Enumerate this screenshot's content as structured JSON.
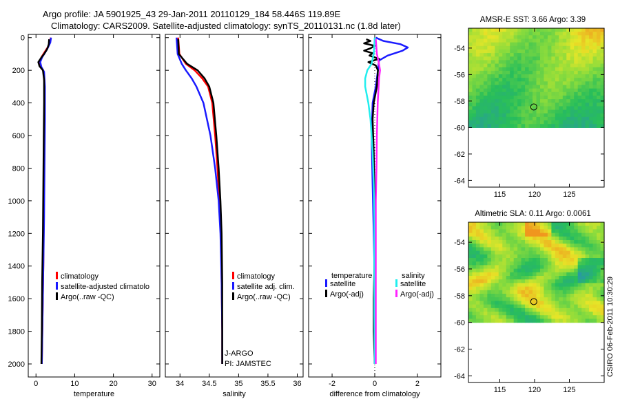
{
  "header": {
    "line1": "Argo profile: JA 5901925_43 29-Jan-2011 20110129_184 58.446S 119.89E",
    "line2": "Climatology: CARS2009. Satellite-adjusted climatology: synTS_20110131.nc (1.8d later)"
  },
  "stamp": "CSIRO 06-Feb-2011 10:30:29",
  "colors": {
    "red": "#ff0000",
    "blue": "#1a1aff",
    "black": "#000000",
    "cyan": "#22eeee",
    "magenta": "#ff22ff"
  },
  "chart_data": [
    {
      "type": "line",
      "name": "temperature-profile",
      "xlabel": "temperature",
      "ylabel": "",
      "xlim": [
        -2,
        32
      ],
      "ylim": [
        2080,
        -20
      ],
      "xticks": [
        0,
        10,
        20,
        30
      ],
      "yticks": [
        0,
        200,
        400,
        600,
        800,
        1000,
        1200,
        1400,
        1600,
        1800,
        2000
      ],
      "legend": [
        "climatology",
        "satellite-adjusted climatolo",
        "Argo(..raw -QC)"
      ],
      "legend_position": "lower-right",
      "series": [
        {
          "name": "climatology",
          "color": "red",
          "points": [
            [
              3.8,
              0
            ],
            [
              3.6,
              30
            ],
            [
              3.0,
              60
            ],
            [
              2.2,
              90
            ],
            [
              1.4,
              120
            ],
            [
              1.0,
              150
            ],
            [
              1.3,
              180
            ],
            [
              2.0,
              210
            ],
            [
              2.2,
              300
            ],
            [
              2.2,
              500
            ],
            [
              2.1,
              800
            ],
            [
              2.0,
              1100
            ],
            [
              1.9,
              1400
            ],
            [
              1.7,
              1700
            ],
            [
              1.5,
              2000
            ]
          ]
        },
        {
          "name": "satellite-adjusted climatology",
          "color": "blue",
          "points": [
            [
              3.9,
              0
            ],
            [
              3.7,
              30
            ],
            [
              3.1,
              60
            ],
            [
              2.4,
              90
            ],
            [
              1.6,
              120
            ],
            [
              1.1,
              150
            ],
            [
              1.4,
              180
            ],
            [
              2.1,
              210
            ],
            [
              2.3,
              300
            ],
            [
              2.3,
              500
            ],
            [
              2.2,
              800
            ],
            [
              2.1,
              1100
            ],
            [
              1.9,
              1400
            ],
            [
              1.7,
              1700
            ],
            [
              1.5,
              2000
            ]
          ]
        },
        {
          "name": "Argo(..raw -QC)",
          "color": "black",
          "points": [
            [
              3.4,
              10
            ],
            [
              3.3,
              40
            ],
            [
              2.9,
              70
            ],
            [
              2.1,
              100
            ],
            [
              1.3,
              125
            ],
            [
              0.6,
              150
            ],
            [
              0.9,
              175
            ],
            [
              1.8,
              200
            ],
            [
              2.1,
              260
            ],
            [
              2.1,
              400
            ],
            [
              2.0,
              600
            ],
            [
              1.9,
              900
            ],
            [
              1.8,
              1200
            ],
            [
              1.6,
              1500
            ],
            [
              1.5,
              1800
            ],
            [
              1.4,
              2000
            ]
          ]
        }
      ]
    },
    {
      "type": "line",
      "name": "salinity-profile",
      "xlabel": "salinity",
      "ylabel": "",
      "xlim": [
        33.75,
        36.1
      ],
      "ylim": [
        2080,
        -20
      ],
      "xticks": [
        34,
        34.5,
        35,
        35.5,
        36
      ],
      "legend": [
        "climatology",
        "satellite adj. clim.",
        "Argo(..raw -QC)"
      ],
      "legend_position": "lower-right",
      "annotations": [
        "J-ARGO",
        "PI: JAMSTEC"
      ],
      "series": [
        {
          "name": "climatology",
          "color": "red",
          "points": [
            [
              33.97,
              0
            ],
            [
              33.99,
              100
            ],
            [
              34.1,
              160
            ],
            [
              34.25,
              200
            ],
            [
              34.38,
              250
            ],
            [
              34.48,
              300
            ],
            [
              34.55,
              400
            ],
            [
              34.6,
              600
            ],
            [
              34.64,
              800
            ],
            [
              34.67,
              1000
            ],
            [
              34.7,
              1200
            ],
            [
              34.71,
              1500
            ],
            [
              34.72,
              1800
            ],
            [
              34.72,
              2000
            ]
          ]
        },
        {
          "name": "satellite adj. clim.",
          "color": "blue",
          "points": [
            [
              33.94,
              0
            ],
            [
              33.96,
              100
            ],
            [
              34.03,
              160
            ],
            [
              34.1,
              200
            ],
            [
              34.2,
              250
            ],
            [
              34.28,
              300
            ],
            [
              34.4,
              400
            ],
            [
              34.52,
              600
            ],
            [
              34.6,
              800
            ],
            [
              34.66,
              1000
            ],
            [
              34.69,
              1200
            ],
            [
              34.71,
              1500
            ],
            [
              34.72,
              1800
            ],
            [
              34.72,
              2000
            ]
          ]
        },
        {
          "name": "Argo(..raw -QC)",
          "color": "black",
          "points": [
            [
              33.97,
              10
            ],
            [
              33.98,
              100
            ],
            [
              34.12,
              160
            ],
            [
              34.3,
              200
            ],
            [
              34.42,
              250
            ],
            [
              34.5,
              300
            ],
            [
              34.57,
              400
            ],
            [
              34.62,
              600
            ],
            [
              34.66,
              800
            ],
            [
              34.69,
              1000
            ],
            [
              34.71,
              1200
            ],
            [
              34.72,
              1500
            ],
            [
              34.72,
              1800
            ],
            [
              34.72,
              2000
            ]
          ]
        }
      ]
    },
    {
      "type": "line",
      "name": "difference-profile",
      "xlabel": "difference from climatology",
      "ylabel": "",
      "xlim": [
        -3.1,
        3.1
      ],
      "ylim": [
        2080,
        -20
      ],
      "xticks": [
        -2,
        0,
        2
      ],
      "legend_left_title": "temperature",
      "legend_right_title": "salinity",
      "legend_left": [
        "satellite",
        "Argo(-adj)"
      ],
      "legend_right": [
        "satellite",
        "Argo(-adj)"
      ],
      "legend_position": "lower-center",
      "series": [
        {
          "name": "temperature satellite",
          "color": "blue",
          "points": [
            [
              0.05,
              0
            ],
            [
              0.4,
              20
            ],
            [
              1.2,
              40
            ],
            [
              1.55,
              60
            ],
            [
              1.3,
              80
            ],
            [
              0.6,
              110
            ],
            [
              0.2,
              140
            ],
            [
              0.15,
              200
            ],
            [
              0.05,
              300
            ],
            [
              -0.1,
              400
            ],
            [
              -0.15,
              600
            ],
            [
              -0.1,
              900
            ],
            [
              -0.05,
              1200
            ],
            [
              0,
              1500
            ],
            [
              0,
              1800
            ],
            [
              0,
              2000
            ]
          ]
        },
        {
          "name": "temperature Argo(-adj)",
          "color": "black",
          "points": [
            [
              -0.4,
              10
            ],
            [
              -0.2,
              20
            ],
            [
              -0.5,
              35
            ],
            [
              0.0,
              50
            ],
            [
              -0.2,
              65
            ],
            [
              -0.5,
              80
            ],
            [
              -0.1,
              95
            ],
            [
              -0.25,
              110
            ],
            [
              0.2,
              130
            ],
            [
              -0.3,
              150
            ],
            [
              0.05,
              170
            ],
            [
              0.15,
              200
            ],
            [
              0.1,
              300
            ],
            [
              -0.05,
              400
            ],
            [
              -0.1,
              500
            ],
            [
              -0.05,
              700
            ],
            [
              0,
              1000
            ],
            [
              0,
              1300
            ],
            [
              -0.05,
              1600
            ],
            [
              -0.05,
              1800
            ],
            [
              0,
              2000
            ]
          ]
        },
        {
          "name": "salinity satellite",
          "color": "cyan",
          "points": [
            [
              0.0,
              0
            ],
            [
              -0.05,
              100
            ],
            [
              -0.15,
              160
            ],
            [
              -0.35,
              200
            ],
            [
              -0.45,
              250
            ],
            [
              -0.45,
              300
            ],
            [
              -0.3,
              400
            ],
            [
              -0.2,
              500
            ],
            [
              -0.1,
              700
            ],
            [
              -0.05,
              900
            ],
            [
              -0.02,
              1100
            ],
            [
              -0.02,
              1400
            ],
            [
              -0.02,
              1700
            ],
            [
              0,
              2000
            ]
          ]
        },
        {
          "name": "salinity Argo(-adj)",
          "color": "magenta",
          "points": [
            [
              0.05,
              10
            ],
            [
              0.1,
              100
            ],
            [
              0.2,
              160
            ],
            [
              0.25,
              200
            ],
            [
              0.2,
              250
            ],
            [
              0.18,
              300
            ],
            [
              0.14,
              400
            ],
            [
              0.1,
              600
            ],
            [
              0.08,
              800
            ],
            [
              0.05,
              1000
            ],
            [
              0.05,
              1200
            ],
            [
              0.05,
              1500
            ],
            [
              0.05,
              1800
            ],
            [
              0.05,
              2000
            ]
          ]
        }
      ]
    },
    {
      "type": "heatmap",
      "name": "amsr-sst-map",
      "title": "AMSR-E SST: 3.66 Argo: 3.39",
      "xlim": [
        110.5,
        130
      ],
      "ylim": [
        -64.5,
        -52.5
      ],
      "xticks": [
        115,
        120,
        125
      ],
      "yticks": [
        -54,
        -56,
        -58,
        -60,
        -62,
        -64
      ],
      "data_extent_lat": [
        -60,
        -52.5
      ],
      "marker": {
        "lon": 119.89,
        "lat": -58.446
      }
    },
    {
      "type": "heatmap",
      "name": "altimetric-sla-map",
      "title": "Altimetric SLA: 0.11 Argo: 0.0061",
      "xlim": [
        110.5,
        130
      ],
      "ylim": [
        -64.5,
        -52.5
      ],
      "xticks": [
        115,
        120,
        125
      ],
      "yticks": [
        -54,
        -56,
        -58,
        -60,
        -62,
        -64
      ],
      "data_extent_lat": [
        -60,
        -52.5
      ],
      "marker": {
        "lon": 119.89,
        "lat": -58.446
      }
    }
  ]
}
